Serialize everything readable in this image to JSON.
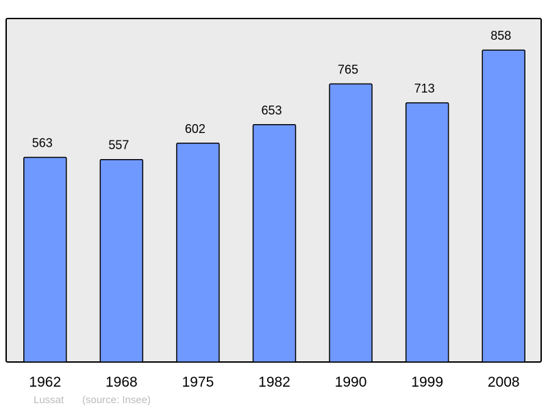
{
  "chart_data": {
    "type": "bar",
    "categories": [
      "1962",
      "1968",
      "1975",
      "1982",
      "1990",
      "1999",
      "2008"
    ],
    "values": [
      563,
      557,
      602,
      653,
      765,
      713,
      858
    ],
    "title": "",
    "xlabel": "",
    "ylabel": "",
    "ylim": [
      0,
      945
    ],
    "grid": false,
    "data_labels": true,
    "colors": {
      "bar": "#7099ff",
      "plot_background": "#ebebeb",
      "border": "#000000"
    }
  },
  "footer": {
    "place": "Lussat",
    "source": "(source: Insee)"
  }
}
